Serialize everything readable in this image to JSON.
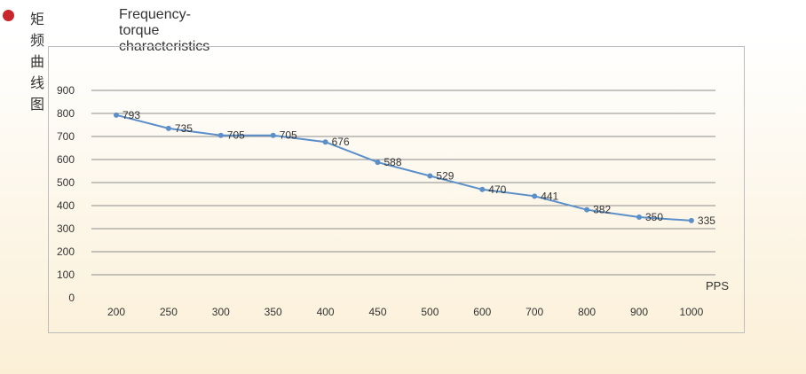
{
  "header": {
    "title_cn": "矩频曲线图",
    "title_en": "Frequency-torque characteristics"
  },
  "colors": {
    "bullet": "#c8252c",
    "series": "#5b8fc9",
    "grid": "#8c8c8c",
    "text": "#333333"
  },
  "chart_data": {
    "type": "line",
    "categories": [
      "200",
      "250",
      "300",
      "350",
      "400",
      "450",
      "500",
      "600",
      "700",
      "800",
      "900",
      "1000"
    ],
    "series": [
      {
        "values": [
          793,
          735,
          705,
          705,
          676,
          588,
          529,
          470,
          441,
          382,
          350,
          335
        ]
      }
    ],
    "data_labels": [
      "793",
      "735",
      "705",
      "705",
      "676",
      "588",
      "529",
      "470",
      "441",
      "382",
      "350",
      "335"
    ],
    "xlabel": "PPS",
    "ylabel": "",
    "ylim": [
      0,
      900
    ],
    "yticks": [
      "0",
      "100",
      "200",
      "300",
      "400",
      "500",
      "600",
      "700",
      "800",
      "900"
    ],
    "grid": true,
    "legend": "none"
  }
}
